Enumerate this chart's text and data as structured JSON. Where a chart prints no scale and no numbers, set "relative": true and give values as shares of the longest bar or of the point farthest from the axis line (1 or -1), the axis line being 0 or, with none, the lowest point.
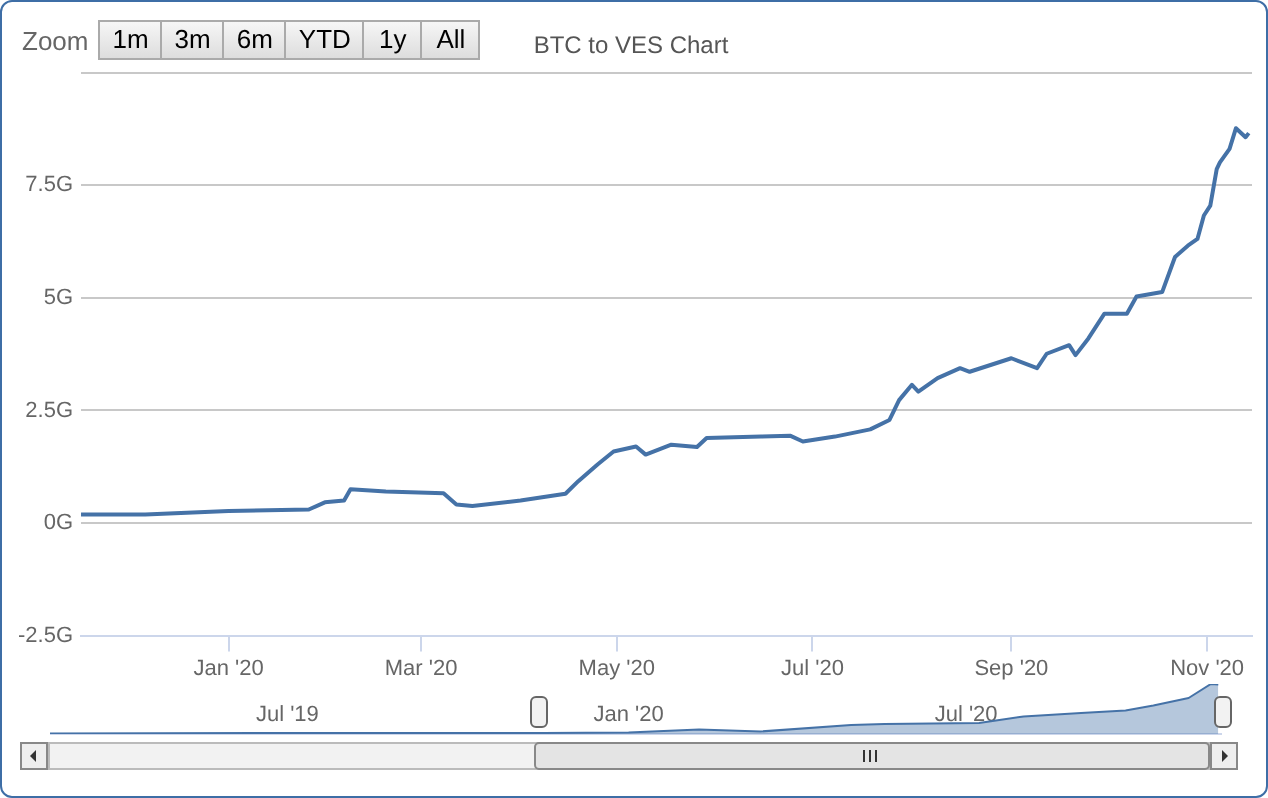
{
  "chart_data": [
    {
      "type": "line",
      "title": "BTC to VES Chart",
      "annotations": [
        "Zoom",
        "1m",
        "3m",
        "6m",
        "YTD",
        "1y",
        "All"
      ],
      "xlim": [
        "2019-11-16",
        "2020-11-15"
      ],
      "xticks": [
        {
          "value": "2020-01-01",
          "label": "Jan '20"
        },
        {
          "value": "2020-03-01",
          "label": "Mar '20"
        },
        {
          "value": "2020-05-01",
          "label": "May '20"
        },
        {
          "value": "2020-07-01",
          "label": "Jul '20"
        },
        {
          "value": "2020-09-01",
          "label": "Sep '20"
        },
        {
          "value": "2020-11-01",
          "label": "Nov '20"
        }
      ],
      "ylim": [
        -2.5,
        10
      ],
      "yticks": [
        {
          "value": -2.5,
          "label": "-2.5G"
        },
        {
          "value": 0,
          "label": "0G"
        },
        {
          "value": 2.5,
          "label": "2.5G"
        },
        {
          "value": 5,
          "label": "5G"
        },
        {
          "value": 7.5,
          "label": "7.5G"
        },
        {
          "value": 10,
          "label": null
        }
      ],
      "grid": "y",
      "legend": false,
      "marker": "none",
      "series": [
        {
          "color": "#4572a7",
          "x": [
            "2019-11-16",
            "2019-12-06",
            "2020-01-01",
            "2020-01-26",
            "2020-01-31",
            "2020-02-06",
            "2020-02-08",
            "2020-02-19",
            "2020-03-08",
            "2020-03-12",
            "2020-03-17",
            "2020-04-01",
            "2020-04-15",
            "2020-04-19",
            "2020-04-25",
            "2020-04-30",
            "2020-05-07",
            "2020-05-10",
            "2020-05-18",
            "2020-05-26",
            "2020-05-29",
            "2020-06-15",
            "2020-06-24",
            "2020-06-28",
            "2020-07-08",
            "2020-07-19",
            "2020-07-25",
            "2020-07-28",
            "2020-08-01",
            "2020-08-03",
            "2020-08-09",
            "2020-08-16",
            "2020-08-19",
            "2020-09-01",
            "2020-09-09",
            "2020-09-12",
            "2020-09-19",
            "2020-09-21",
            "2020-09-25",
            "2020-09-30",
            "2020-10-07",
            "2020-10-10",
            "2020-10-18",
            "2020-10-22",
            "2020-10-26",
            "2020-10-29",
            "2020-10-31",
            "2020-11-02",
            "2020-11-04",
            "2020-11-05",
            "2020-11-08",
            "2020-11-10",
            "2020-11-13",
            "2020-11-14"
          ],
          "values": [
            0.19,
            0.19,
            0.27,
            0.3,
            0.46,
            0.5,
            0.75,
            0.7,
            0.66,
            0.41,
            0.38,
            0.5,
            0.65,
            0.93,
            1.3,
            1.59,
            1.7,
            1.52,
            1.74,
            1.69,
            1.89,
            1.92,
            1.94,
            1.81,
            1.92,
            2.08,
            2.29,
            2.73,
            3.07,
            2.92,
            3.22,
            3.44,
            3.36,
            3.66,
            3.44,
            3.76,
            3.95,
            3.73,
            4.1,
            4.65,
            4.65,
            5.03,
            5.13,
            5.91,
            6.16,
            6.31,
            6.83,
            7.05,
            7.86,
            8.01,
            8.31,
            8.77,
            8.57,
            8.66
          ]
        }
      ]
    },
    {
      "type": "area",
      "relative": true,
      "legend": false,
      "marker": "none",
      "tick_labels": "x",
      "xlim": [
        "2019-02-23",
        "2020-11-16"
      ],
      "xticks": [
        {
          "value": "2019-07-01",
          "label": "Jul '19"
        },
        {
          "value": "2020-01-01",
          "label": "Jan '20"
        },
        {
          "value": "2020-07-01",
          "label": "Jul '20"
        }
      ],
      "series": [
        {
          "color": "#4572a7",
          "x": [
            "2019-02-23",
            "2019-07-01",
            "2019-11-16",
            "2020-01-01",
            "2020-02-08",
            "2020-03-12",
            "2020-04-30",
            "2020-05-18",
            "2020-07-08",
            "2020-08-01",
            "2020-09-01",
            "2020-09-25",
            "2020-10-10",
            "2020-10-29",
            "2020-11-10",
            "2020-11-14"
          ],
          "values": [
            0.01,
            0.02,
            0.02,
            0.03,
            0.09,
            0.05,
            0.18,
            0.2,
            0.22,
            0.35,
            0.42,
            0.47,
            0.57,
            0.72,
            1,
            0.99
          ]
        }
      ]
    }
  ]
}
